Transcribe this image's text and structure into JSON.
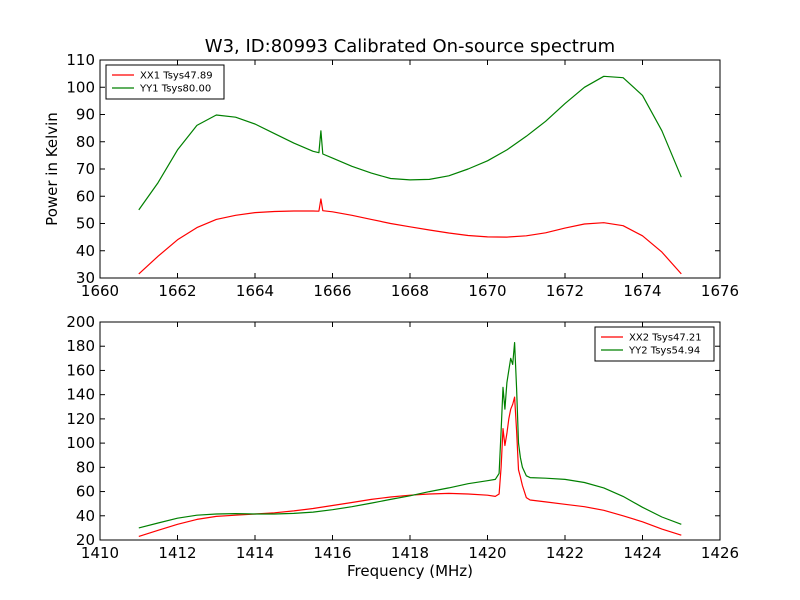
{
  "chart_data": [
    {
      "type": "line",
      "title": "W3, ID:80993 Calibrated On-source spectrum",
      "xlabel": "",
      "ylabel": "Power in Kelvin",
      "xlim": [
        1660,
        1676
      ],
      "ylim": [
        30,
        110
      ],
      "x_ticks": [
        "1660",
        "1662",
        "1664",
        "1666",
        "1668",
        "1670",
        "1672",
        "1674",
        "1676"
      ],
      "y_ticks": [
        "30",
        "40",
        "50",
        "60",
        "70",
        "80",
        "90",
        "100",
        "110"
      ],
      "grid": false,
      "legend": "top-left",
      "series": [
        {
          "name": "XX1 Tsys47.89",
          "color": "#ff0000",
          "x": [
            1661.0,
            1661.5,
            1662.0,
            1662.5,
            1663.0,
            1663.5,
            1664.0,
            1664.5,
            1665.0,
            1665.5,
            1665.65,
            1665.7,
            1665.75,
            1666.0,
            1666.5,
            1667.0,
            1667.5,
            1668.0,
            1668.5,
            1669.0,
            1669.5,
            1670.0,
            1670.5,
            1671.0,
            1671.5,
            1672.0,
            1672.5,
            1673.0,
            1673.5,
            1674.0,
            1674.5,
            1675.0
          ],
          "y": [
            31.5,
            38,
            44,
            48.5,
            51.5,
            53,
            54,
            54.4,
            54.6,
            54.6,
            54.5,
            59,
            54.7,
            54.3,
            53,
            51.5,
            50,
            48.8,
            47.6,
            46.5,
            45.6,
            45.1,
            45.0,
            45.5,
            46.6,
            48.3,
            49.8,
            50.3,
            49.2,
            45.5,
            39.5,
            31.5
          ]
        },
        {
          "name": "YY1 Tsys80.00",
          "color": "#008000",
          "x": [
            1661.0,
            1661.5,
            1662.0,
            1662.5,
            1663.0,
            1663.5,
            1664.0,
            1664.5,
            1665.0,
            1665.5,
            1665.65,
            1665.7,
            1665.75,
            1666.0,
            1666.5,
            1667.0,
            1667.5,
            1668.0,
            1668.5,
            1669.0,
            1669.5,
            1670.0,
            1670.5,
            1671.0,
            1671.5,
            1672.0,
            1672.5,
            1673.0,
            1673.5,
            1674.0,
            1674.5,
            1675.0
          ],
          "y": [
            55,
            65,
            77,
            86,
            89.8,
            89,
            86.5,
            83,
            79.5,
            76.5,
            76,
            84,
            75.5,
            74,
            71,
            68.5,
            66.5,
            66,
            66.2,
            67.5,
            70,
            73,
            77,
            82,
            87.5,
            94,
            100,
            104,
            103.5,
            97,
            84,
            67
          ]
        }
      ]
    },
    {
      "type": "line",
      "title": "",
      "xlabel": "Frequency (MHz)",
      "ylabel": "",
      "xlim": [
        1410,
        1426
      ],
      "ylim": [
        20,
        200
      ],
      "x_ticks": [
        "1410",
        "1412",
        "1414",
        "1416",
        "1418",
        "1420",
        "1422",
        "1424",
        "1426"
      ],
      "y_ticks": [
        "20",
        "40",
        "60",
        "80",
        "100",
        "120",
        "140",
        "160",
        "180",
        "200"
      ],
      "grid": false,
      "legend": "top-right",
      "series": [
        {
          "name": "XX2 Tsys47.21",
          "color": "#ff0000",
          "x": [
            1411.0,
            1411.5,
            1412.0,
            1412.5,
            1413.0,
            1413.5,
            1414.0,
            1414.5,
            1415.0,
            1415.5,
            1416.0,
            1416.5,
            1417.0,
            1417.5,
            1418.0,
            1418.5,
            1419.0,
            1419.5,
            1420.0,
            1420.2,
            1420.3,
            1420.35,
            1420.4,
            1420.45,
            1420.5,
            1420.55,
            1420.6,
            1420.65,
            1420.7,
            1420.75,
            1420.8,
            1420.85,
            1420.9,
            1421.0,
            1421.1,
            1421.5,
            1422.0,
            1422.5,
            1423.0,
            1423.5,
            1424.0,
            1424.5,
            1425.0
          ],
          "y": [
            23,
            28,
            33,
            37,
            39.5,
            40.5,
            41.5,
            42.5,
            44,
            46,
            48.5,
            51,
            53.5,
            55.5,
            57,
            58,
            58.5,
            58,
            57,
            56,
            58,
            80,
            112,
            98,
            108,
            120,
            128,
            132,
            138,
            110,
            78,
            72,
            65,
            55,
            53,
            51.5,
            49.5,
            47.5,
            44.5,
            40,
            35,
            29,
            24
          ]
        },
        {
          "name": "YY2 Tsys54.94",
          "color": "#008000",
          "x": [
            1411.0,
            1411.5,
            1412.0,
            1412.5,
            1413.0,
            1413.5,
            1414.0,
            1414.5,
            1415.0,
            1415.5,
            1416.0,
            1416.5,
            1417.0,
            1417.5,
            1418.0,
            1418.5,
            1419.0,
            1419.5,
            1420.0,
            1420.2,
            1420.3,
            1420.35,
            1420.4,
            1420.45,
            1420.5,
            1420.55,
            1420.6,
            1420.65,
            1420.7,
            1420.75,
            1420.8,
            1420.85,
            1420.9,
            1421.0,
            1421.1,
            1421.5,
            1422.0,
            1422.5,
            1423.0,
            1423.5,
            1424.0,
            1424.5,
            1425.0
          ],
          "y": [
            30,
            34,
            38,
            40.5,
            41.5,
            41.8,
            41.5,
            41.5,
            42,
            43,
            45,
            47.5,
            50.5,
            53.5,
            56.5,
            60,
            63,
            66.5,
            69,
            70,
            75,
            110,
            146,
            128,
            150,
            160,
            170,
            165,
            183,
            145,
            100,
            88,
            80,
            73,
            71.5,
            71,
            70,
            67.5,
            63,
            56,
            47,
            39,
            33
          ]
        }
      ]
    }
  ]
}
